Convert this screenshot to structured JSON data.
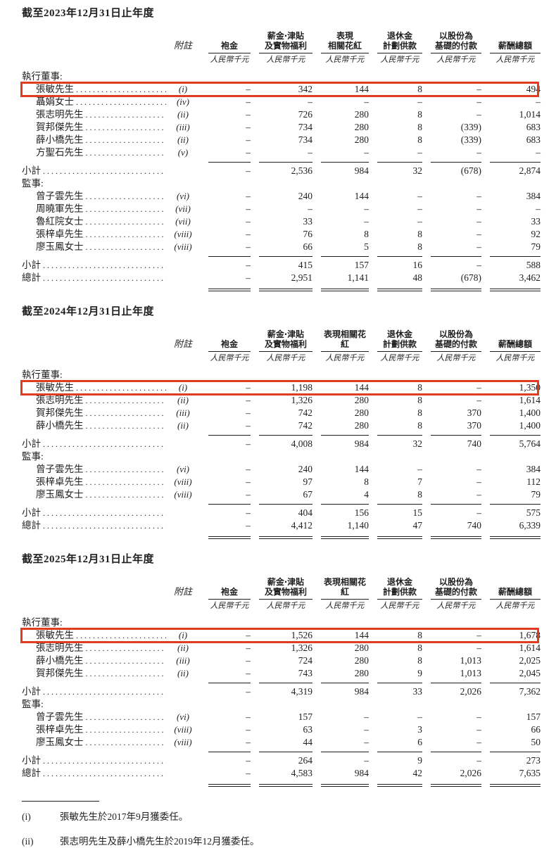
{
  "highlight_color": "#e03c22",
  "unit_note": "人民幣千元",
  "tables": [
    {
      "title": "截至2023年12月31日止年度",
      "note_header": "附註",
      "unit": "人民幣千元",
      "columns": [
        [
          "袍金"
        ],
        [
          "薪金‧津貼",
          "及實物福利"
        ],
        [
          "表現",
          "相關花紅"
        ],
        [
          "退休金",
          "計劃供款"
        ],
        [
          "以股份為",
          "基礎的付款"
        ],
        [
          "薪酬總額"
        ]
      ],
      "rows": [
        {
          "type": "section",
          "label": "執行董事:"
        },
        {
          "type": "person",
          "name": "張敏先生",
          "note": "(i)",
          "highlight": true,
          "values": [
            "–",
            "342",
            "144",
            "8",
            "–",
            "494"
          ]
        },
        {
          "type": "person",
          "name": "聶娟女士",
          "note": "(iv)",
          "values": [
            "–",
            "–",
            "–",
            "–",
            "–",
            "–"
          ]
        },
        {
          "type": "person",
          "name": "張志明先生",
          "note": "(ii)",
          "values": [
            "–",
            "726",
            "280",
            "8",
            "–",
            "1,014"
          ]
        },
        {
          "type": "person",
          "name": "賀邦傑先生",
          "note": "(iii)",
          "values": [
            "–",
            "734",
            "280",
            "8",
            "(339)",
            "683"
          ]
        },
        {
          "type": "person",
          "name": "薛小橋先生",
          "note": "(ii)",
          "values": [
            "–",
            "734",
            "280",
            "8",
            "(339)",
            "683"
          ]
        },
        {
          "type": "person",
          "name": "方聖石先生",
          "note": "(v)",
          "values": [
            "–",
            "–",
            "–",
            "–",
            "–",
            "–"
          ]
        },
        {
          "type": "rule"
        },
        {
          "type": "total",
          "name": "小計",
          "values": [
            "–",
            "2,536",
            "984",
            "32",
            "(678)",
            "2,874"
          ]
        },
        {
          "type": "section",
          "label": "監事:"
        },
        {
          "type": "person",
          "name": "曾子雲先生",
          "note": "(vi)",
          "values": [
            "–",
            "240",
            "144",
            "–",
            "–",
            "384"
          ]
        },
        {
          "type": "person",
          "name": "周曉軍先生",
          "note": "(vii)",
          "values": [
            "–",
            "–",
            "–",
            "–",
            "–",
            "–"
          ]
        },
        {
          "type": "person",
          "name": "魯紅院女士",
          "note": "(vii)",
          "values": [
            "–",
            "33",
            "–",
            "–",
            "–",
            "33"
          ]
        },
        {
          "type": "person",
          "name": "張梓卓先生",
          "note": "(viii)",
          "values": [
            "–",
            "76",
            "8",
            "8",
            "–",
            "92"
          ]
        },
        {
          "type": "person",
          "name": "廖玉鳳女士",
          "note": "(viii)",
          "values": [
            "–",
            "66",
            "5",
            "8",
            "–",
            "79"
          ]
        },
        {
          "type": "rule"
        },
        {
          "type": "total",
          "name": "小計",
          "values": [
            "–",
            "415",
            "157",
            "16",
            "–",
            "588"
          ]
        },
        {
          "type": "total",
          "name": "總計",
          "values": [
            "–",
            "2,951",
            "1,141",
            "48",
            "(678)",
            "3,462"
          ]
        },
        {
          "type": "rule2"
        }
      ]
    },
    {
      "title": "截至2024年12月31日止年度",
      "note_header": "附註",
      "unit": "人民幣千元",
      "columns": [
        [
          "袍金"
        ],
        [
          "薪金‧津貼",
          "及實物福利"
        ],
        [
          "表現相關花紅"
        ],
        [
          "退休金",
          "計劃供款"
        ],
        [
          "以股份為",
          "基礎的付款"
        ],
        [
          "薪酬總額"
        ]
      ],
      "rows": [
        {
          "type": "section",
          "label": "執行董事:"
        },
        {
          "type": "person",
          "name": "張敏先生",
          "note": "(i)",
          "highlight": true,
          "values": [
            "–",
            "1,198",
            "144",
            "8",
            "–",
            "1,350"
          ]
        },
        {
          "type": "person",
          "name": "張志明先生",
          "note": "(ii)",
          "values": [
            "–",
            "1,326",
            "280",
            "8",
            "–",
            "1,614"
          ]
        },
        {
          "type": "person",
          "name": "賀邦傑先生",
          "note": "(iii)",
          "values": [
            "–",
            "742",
            "280",
            "8",
            "370",
            "1,400"
          ]
        },
        {
          "type": "person",
          "name": "薛小橋先生",
          "note": "(ii)",
          "values": [
            "–",
            "742",
            "280",
            "8",
            "370",
            "1,400"
          ]
        },
        {
          "type": "rule"
        },
        {
          "type": "total",
          "name": "小計",
          "values": [
            "–",
            "4,008",
            "984",
            "32",
            "740",
            "5,764"
          ]
        },
        {
          "type": "section",
          "label": "監事:"
        },
        {
          "type": "person",
          "name": "曾子雲先生",
          "note": "(vi)",
          "values": [
            "–",
            "240",
            "144",
            "–",
            "–",
            "384"
          ]
        },
        {
          "type": "person",
          "name": "張梓卓先生",
          "note": "(viii)",
          "values": [
            "–",
            "97",
            "8",
            "7",
            "–",
            "112"
          ]
        },
        {
          "type": "person",
          "name": "廖玉鳳女士",
          "note": "(viii)",
          "values": [
            "–",
            "67",
            "4",
            "8",
            "–",
            "79"
          ]
        },
        {
          "type": "rule"
        },
        {
          "type": "total",
          "name": "小計",
          "values": [
            "–",
            "404",
            "156",
            "15",
            "–",
            "575"
          ]
        },
        {
          "type": "total",
          "name": "總計",
          "values": [
            "–",
            "4,412",
            "1,140",
            "47",
            "740",
            "6,339"
          ]
        },
        {
          "type": "rule2"
        }
      ]
    },
    {
      "title": "截至2025年12月31日止年度",
      "note_header": "附註",
      "unit": "人民幣千元",
      "columns": [
        [
          "袍金"
        ],
        [
          "薪金‧津貼",
          "及實物福利"
        ],
        [
          "表現相關花紅"
        ],
        [
          "退休金",
          "計劃供款"
        ],
        [
          "以股份為",
          "基礎的付款"
        ],
        [
          "薪酬總額"
        ]
      ],
      "rows": [
        {
          "type": "section",
          "label": "執行董事:"
        },
        {
          "type": "person",
          "name": "張敏先生",
          "note": "(i)",
          "highlight": true,
          "values": [
            "–",
            "1,526",
            "144",
            "8",
            "–",
            "1,678"
          ]
        },
        {
          "type": "person",
          "name": "張志明先生",
          "note": "(ii)",
          "values": [
            "–",
            "1,326",
            "280",
            "8",
            "–",
            "1,614"
          ]
        },
        {
          "type": "person",
          "name": "薛小橋先生",
          "note": "(iii)",
          "values": [
            "–",
            "724",
            "280",
            "8",
            "1,013",
            "2,025"
          ]
        },
        {
          "type": "person",
          "name": "賀邦傑先生",
          "note": "(ii)",
          "values": [
            "–",
            "743",
            "280",
            "9",
            "1,013",
            "2,045"
          ]
        },
        {
          "type": "rule"
        },
        {
          "type": "total",
          "name": "小計",
          "values": [
            "–",
            "4,319",
            "984",
            "33",
            "2,026",
            "7,362"
          ]
        },
        {
          "type": "section",
          "label": "監事:"
        },
        {
          "type": "person",
          "name": "曾子雲先生",
          "note": "(vi)",
          "values": [
            "–",
            "157",
            "–",
            "–",
            "–",
            "157"
          ]
        },
        {
          "type": "person",
          "name": "張梓卓先生",
          "note": "(viii)",
          "values": [
            "–",
            "63",
            "–",
            "3",
            "–",
            "66"
          ]
        },
        {
          "type": "person",
          "name": "廖玉鳳女士",
          "note": "(viii)",
          "values": [
            "–",
            "44",
            "–",
            "6",
            "–",
            "50"
          ]
        },
        {
          "type": "rule"
        },
        {
          "type": "total",
          "name": "小計",
          "values": [
            "–",
            "264",
            "–",
            "9",
            "–",
            "273"
          ]
        },
        {
          "type": "total",
          "name": "總計",
          "values": [
            "–",
            "4,583",
            "984",
            "42",
            "2,026",
            "7,635"
          ]
        },
        {
          "type": "rule2"
        }
      ]
    }
  ],
  "footnotes": [
    {
      "label": "(i)",
      "text": "張敏先生於2017年9月獲委任。"
    },
    {
      "label": "(ii)",
      "text": "張志明先生及薛小橋先生於2019年12月獲委任。"
    }
  ]
}
